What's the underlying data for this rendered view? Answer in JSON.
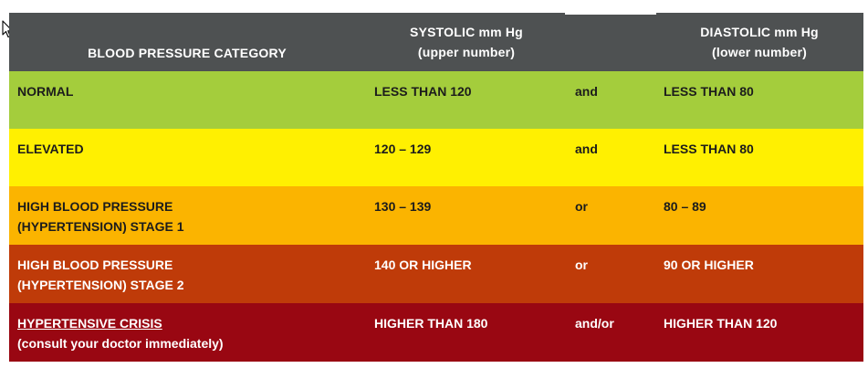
{
  "table": {
    "header": {
      "category": "BLOOD PRESSURE CATEGORY",
      "systolic_line1": "SYSTOLIC mm Hg",
      "systolic_line2": "(upper number)",
      "diastolic_line1": "DIASTOLIC mm Hg",
      "diastolic_line2": "(lower number)"
    },
    "rows": [
      {
        "category_line1": "NORMAL",
        "systolic": "LESS THAN 120",
        "conjunction": "and",
        "diastolic": "LESS THAN 80",
        "color": "#a4cd3c"
      },
      {
        "category_line1": "ELEVATED",
        "systolic": "120 – 129",
        "conjunction": "and",
        "diastolic": "LESS THAN 80",
        "color": "#fff001"
      },
      {
        "category_line1": "HIGH BLOOD PRESSURE",
        "category_line2": "(HYPERTENSION) STAGE 1",
        "systolic": "130 – 139",
        "conjunction": "or",
        "diastolic": "80 – 89",
        "color": "#fbb400"
      },
      {
        "category_line1": "HIGH BLOOD PRESSURE",
        "category_line2": "(HYPERTENSION) STAGE 2",
        "systolic": "140 OR HIGHER",
        "conjunction": "or",
        "diastolic": "90 OR HIGHER",
        "color": "#bf3b09"
      },
      {
        "category_line1": "HYPERTENSIVE CRISIS",
        "category_line2": "(consult your doctor immediately)",
        "systolic": "HIGHER THAN 180",
        "conjunction": "and/or",
        "diastolic": "HIGHER THAN 120",
        "color": "#990712"
      }
    ],
    "header_color": "#4e5152"
  },
  "cursor_icon": "mouse-pointer-icon"
}
